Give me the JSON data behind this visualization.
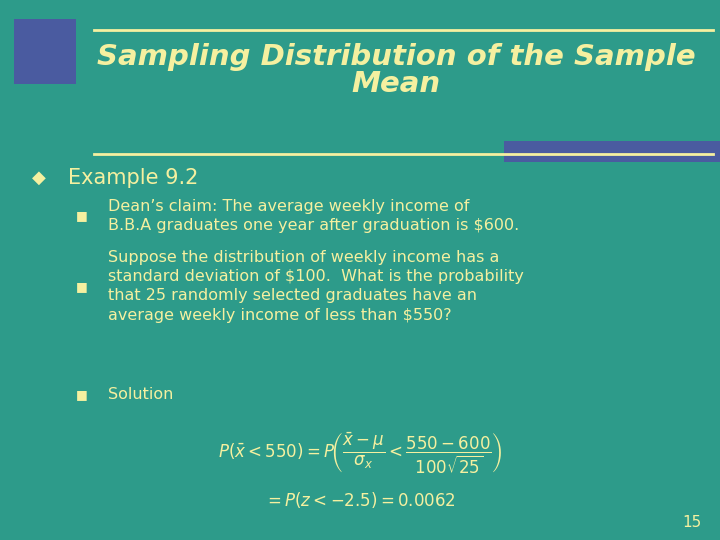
{
  "bg_color": "#2D9B8A",
  "title_line1": "Sampling Distribution of the Sample",
  "title_line2": "Mean",
  "title_color": "#F5F0A0",
  "accent_rect_color": "#4A5BA0",
  "bullet_marker": "◆",
  "sub_bullet_marker": "■",
  "example_text": "Example 9.2",
  "bullet1_line1": "Dean’s claim: The average weekly income of",
  "bullet1_line2": "B.B.A graduates one year after graduation is $600.",
  "bullet2_line1": "Suppose the distribution of weekly income has a",
  "bullet2_line2": "standard deviation of $100.  What is the probability",
  "bullet2_line3": "that 25 randomly selected graduates have an",
  "bullet2_line4": "average weekly income of less than $550?",
  "bullet3": "Solution",
  "page_num": "15"
}
